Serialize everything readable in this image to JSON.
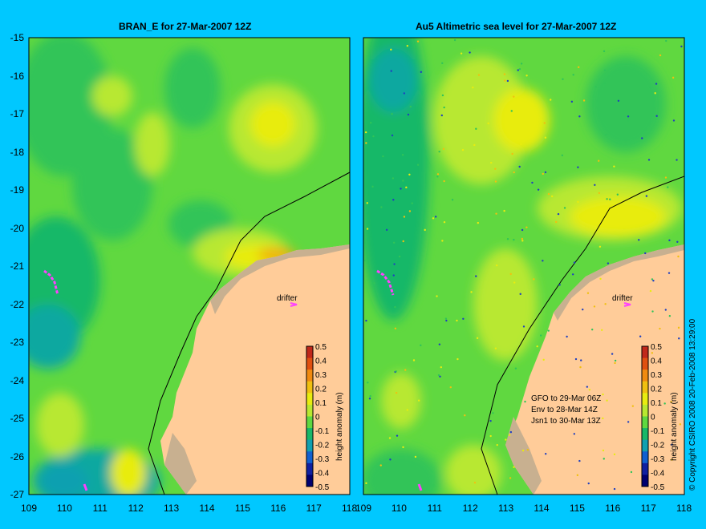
{
  "left_panel": {
    "title": "BRAN_E for 27-Mar-2007 12Z",
    "drifter_label": "drifter"
  },
  "right_panel": {
    "title": "Au5 Altimetric sea level  for 27-Mar-2007 12Z",
    "drifter_label": "drifter",
    "satellite_lines": [
      "GFO to 29-Mar 06Z",
      "Env to 28-Mar 14Z",
      "Jsn1 to 30-Mar 13Z"
    ]
  },
  "y_ticks": [
    "-15",
    "-16",
    "-17",
    "-18",
    "-19",
    "-20",
    "-21",
    "-22",
    "-23",
    "-24",
    "-25",
    "-26",
    "-27"
  ],
  "x_ticks": [
    "109",
    "110",
    "111",
    "112",
    "113",
    "114",
    "115",
    "116",
    "117",
    "118"
  ],
  "colorbar": {
    "label": "height anomaly (m)",
    "ticks": [
      "0.5",
      "0.4",
      "0.3",
      "0.2",
      "0.1",
      "0",
      "-0.1",
      "-0.2",
      "-0.3",
      "-0.4",
      "-0.5"
    ],
    "colors": [
      "#c0281a",
      "#e05010",
      "#f08a10",
      "#f0c010",
      "#e8ec10",
      "#b8e830",
      "#60d840",
      "#18b868",
      "#10a0b0",
      "#1060d0",
      "#1020a0",
      "#000070"
    ]
  },
  "copyright": "© Copyright CSIRO 2008   20-Feb-2008 13:29:00",
  "colors": {
    "background": "#00c8ff",
    "land": "#ffcc99",
    "shelf": "#c8b090"
  }
}
